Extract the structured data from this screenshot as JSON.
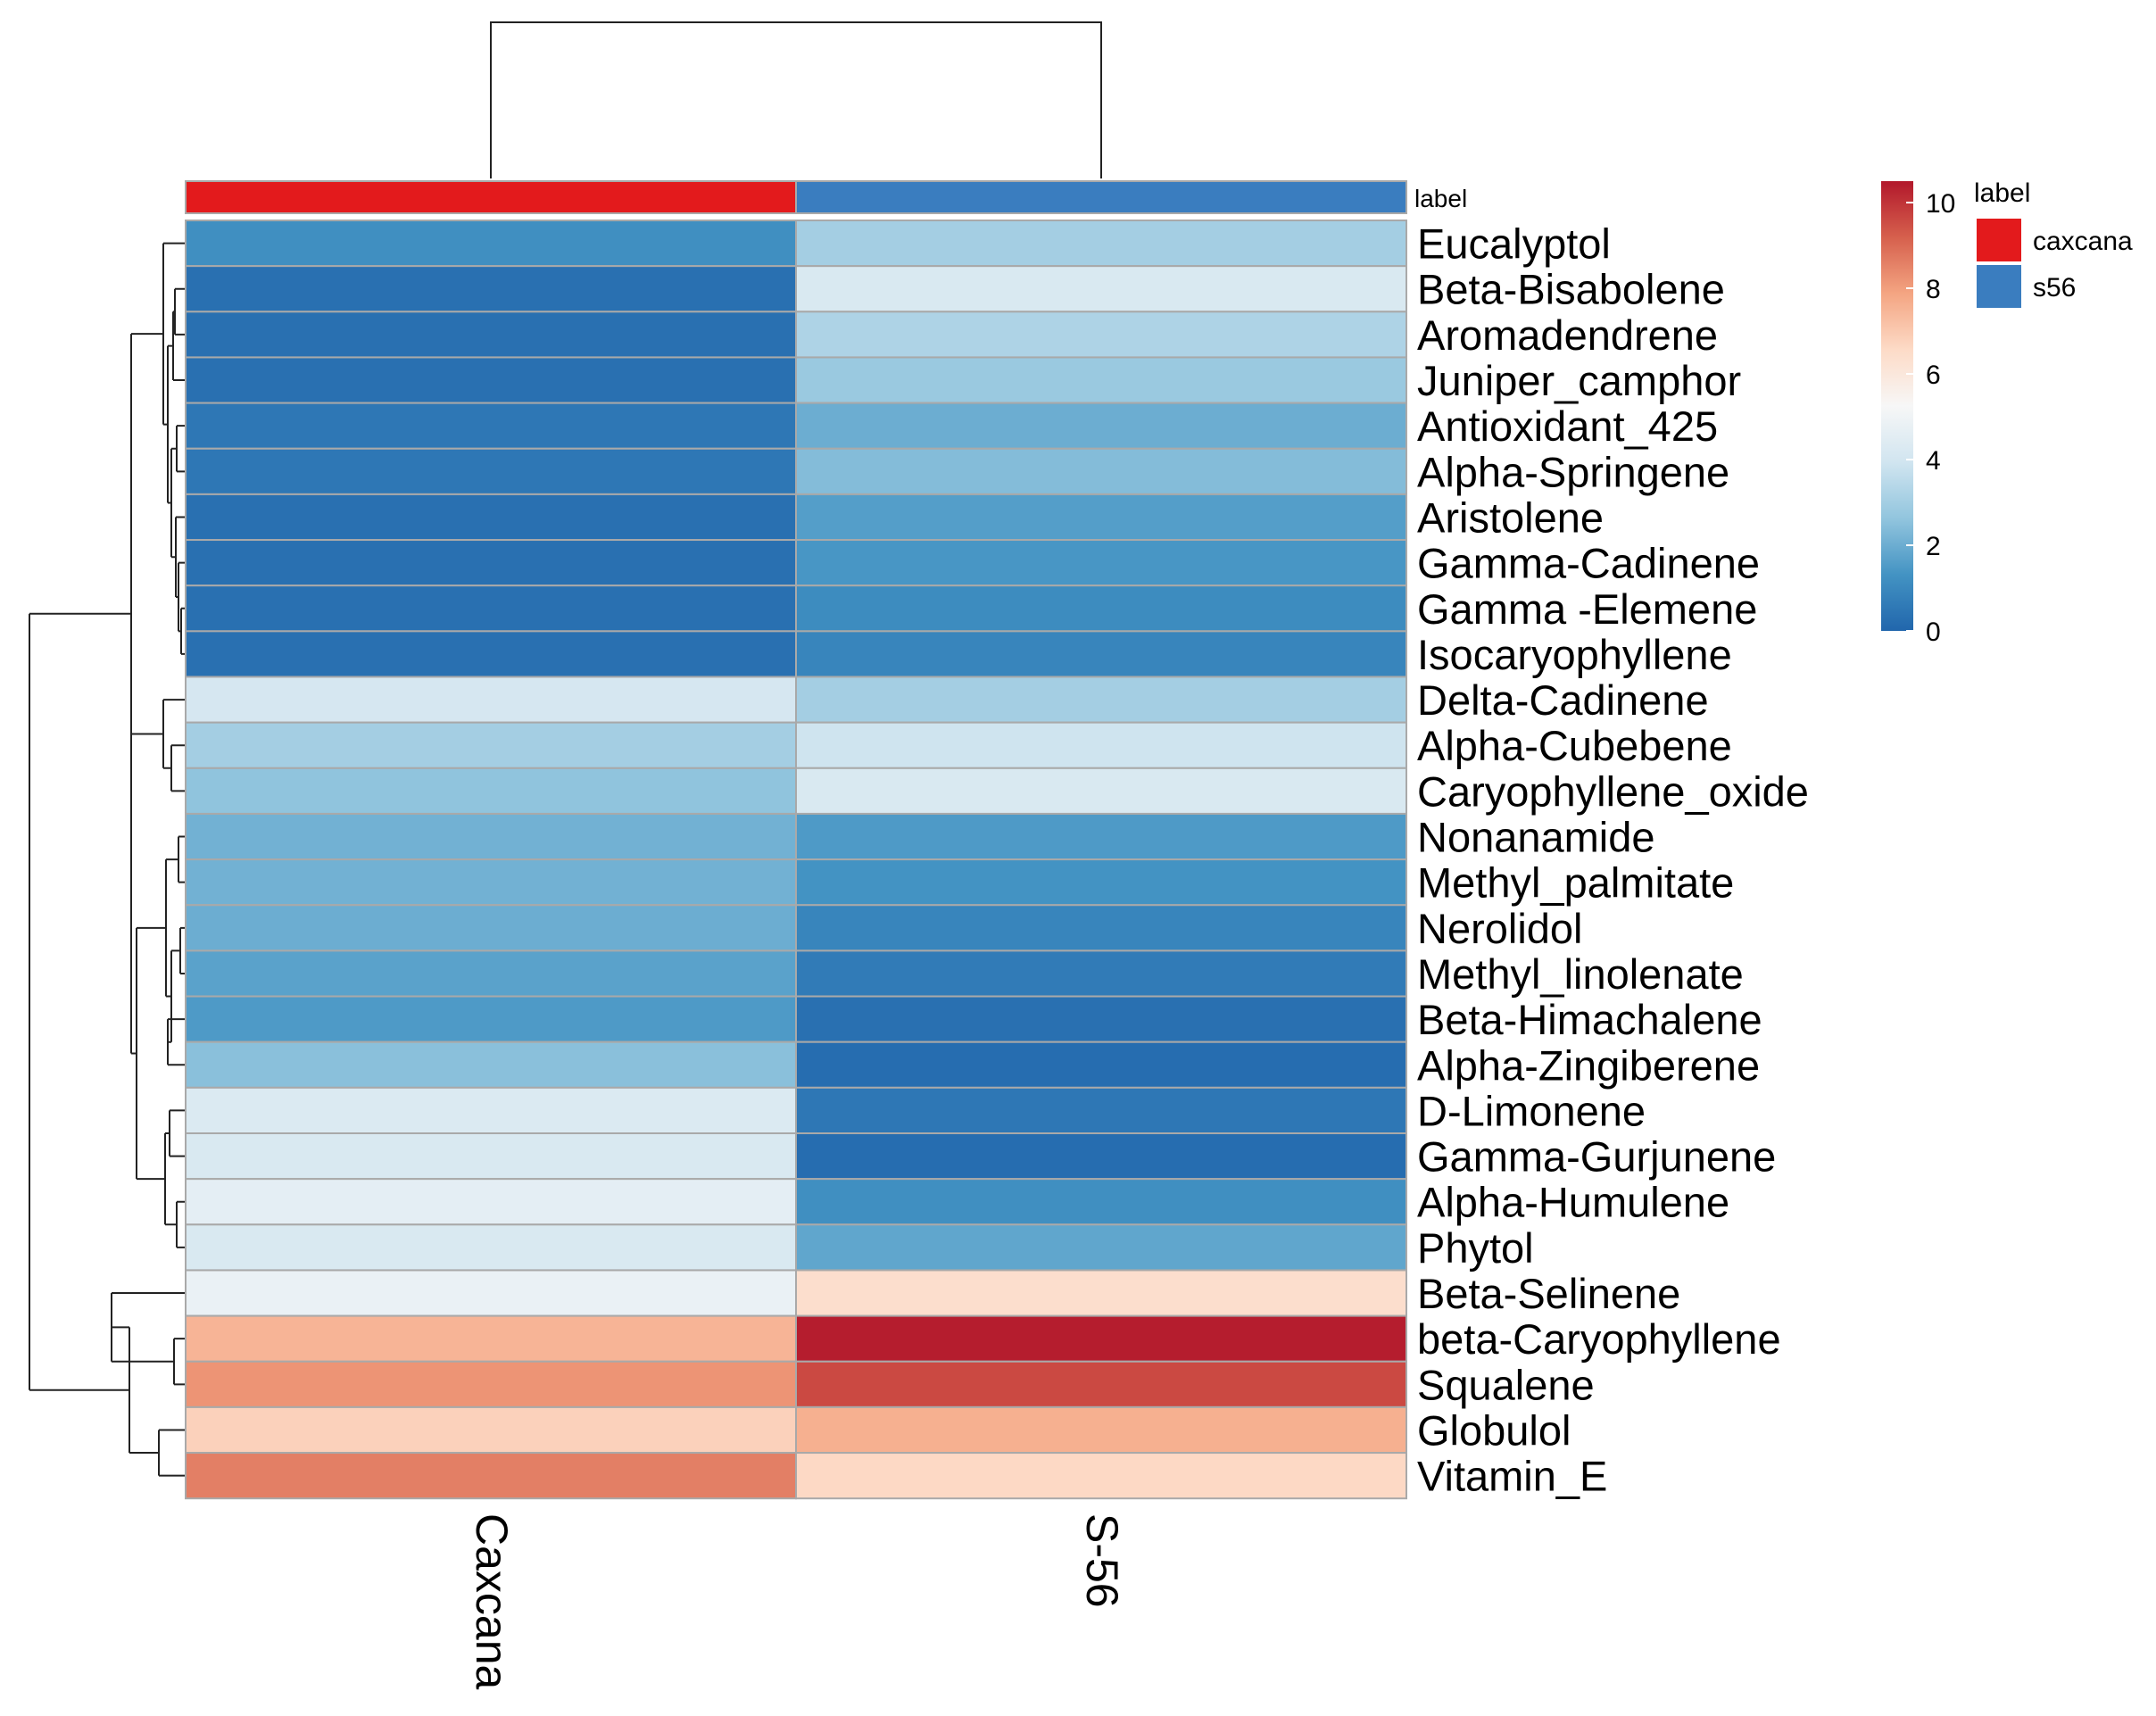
{
  "chart_data": {
    "type": "heatmap",
    "title": "",
    "columns": [
      "Caxcana",
      "S-56"
    ],
    "column_groups": [
      "caxcana",
      "s56"
    ],
    "annotation_label": "label",
    "rows": [
      "Eucalyptol",
      "Beta-Bisabolene",
      "Aromadendrene",
      "Juniper_camphor",
      "Antioxidant_425",
      "Alpha-Springene",
      "Aristolene",
      "Gamma-Cadinene",
      "Gamma -Elemene",
      "Isocaryophyllene",
      "Delta-Cadinene",
      "Alpha-Cubebene",
      "Caryophyllene_oxide",
      "Nonanamide",
      "Methyl_palmitate",
      "Nerolidol",
      "Methyl_linolenate",
      "Beta-Himachalene",
      "Alpha-Zingiberene",
      "D-Limonene",
      "Gamma-Gurjunene",
      "Alpha-Humulene",
      "Phytol",
      "Beta-Selinene",
      "beta-Caryophyllene",
      "Squalene",
      "Globulol",
      "Vitamin_E"
    ],
    "values": [
      [
        1.2,
        3.0
      ],
      [
        0.3,
        4.2
      ],
      [
        0.3,
        3.2
      ],
      [
        0.3,
        2.8
      ],
      [
        0.5,
        2.0
      ],
      [
        0.5,
        2.4
      ],
      [
        0.3,
        1.6
      ],
      [
        0.3,
        1.4
      ],
      [
        0.3,
        1.1
      ],
      [
        0.3,
        0.9
      ],
      [
        4.1,
        3.0
      ],
      [
        3.0,
        3.9
      ],
      [
        2.6,
        4.2
      ],
      [
        2.1,
        1.5
      ],
      [
        2.1,
        1.3
      ],
      [
        2.0,
        0.9
      ],
      [
        1.7,
        0.6
      ],
      [
        1.5,
        0.3
      ],
      [
        2.5,
        0.2
      ],
      [
        4.3,
        0.5
      ],
      [
        4.2,
        0.2
      ],
      [
        4.6,
        1.2
      ],
      [
        4.2,
        1.8
      ],
      [
        4.8,
        6.4
      ],
      [
        7.5,
        10.4
      ],
      [
        8.2,
        9.6
      ],
      [
        6.8,
        7.6
      ],
      [
        8.6,
        6.6
      ]
    ],
    "colorbar": {
      "min": 0,
      "max": 10.5,
      "ticks": [
        0,
        2,
        4,
        6,
        8,
        10
      ],
      "tick_labels": [
        "0",
        "2",
        "4",
        "6",
        "8",
        "10"
      ],
      "colors": [
        "#2166ac",
        "#4393c3",
        "#92c5de",
        "#d1e5f0",
        "#f7f7f7",
        "#fddbc7",
        "#f4a582",
        "#d6604d",
        "#b2182b"
      ]
    },
    "legend": {
      "title": "label",
      "entries": [
        {
          "name": "caxcana",
          "color": "#e31a1c"
        },
        {
          "name": "s56",
          "color": "#3a7dbf"
        }
      ],
      "position": "right"
    },
    "row_dendrogram": true,
    "column_dendrogram": true
  }
}
